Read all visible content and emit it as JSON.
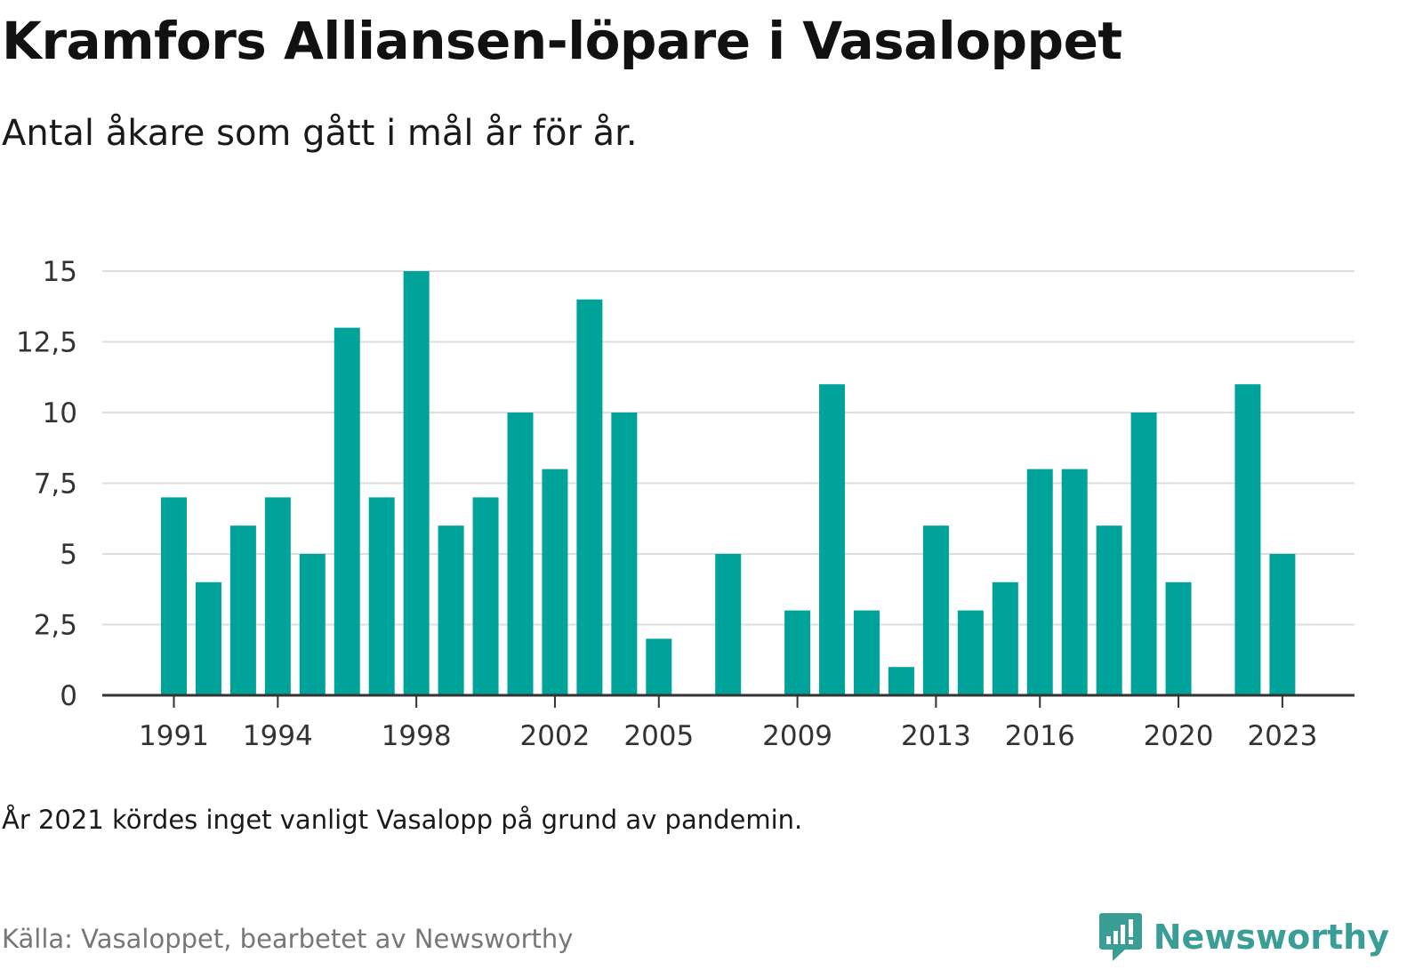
{
  "title": "Kramfors Alliansen-löpare i Vasaloppet",
  "subtitle": "Antal åkare som gått i mål år för år.",
  "note": "År 2021 kördes inget vanligt Vasalopp på grund av pandemin.",
  "source": "Källa: Vasaloppet, bearbetet av Newsworthy",
  "brand": {
    "name": "Newsworthy",
    "color": "#3b9e96",
    "icon": "bar-chart-bubble-icon"
  },
  "colors": {
    "bar": "#00a39a",
    "grid": "#dddddd",
    "axis": "#333333",
    "tick_text": "#333333"
  },
  "chart_data": {
    "type": "bar",
    "categories": [
      1991,
      1992,
      1993,
      1994,
      1995,
      1996,
      1997,
      1998,
      1999,
      2000,
      2001,
      2002,
      2003,
      2004,
      2005,
      2006,
      2007,
      2008,
      2009,
      2010,
      2011,
      2012,
      2013,
      2014,
      2015,
      2016,
      2017,
      2018,
      2019,
      2020,
      2021,
      2022,
      2023
    ],
    "values": [
      7,
      4,
      6,
      7,
      5,
      13,
      7,
      15,
      6,
      7,
      10,
      8,
      14,
      10,
      2,
      0,
      5,
      0,
      3,
      11,
      3,
      1,
      6,
      3,
      4,
      8,
      8,
      6,
      10,
      4,
      0,
      11,
      5
    ],
    "x_tick_labels": [
      "1991",
      "1994",
      "1998",
      "2002",
      "2005",
      "2009",
      "2013",
      "2016",
      "2020",
      "2023"
    ],
    "y_ticks": [
      0,
      2.5,
      5,
      7.5,
      10,
      12.5,
      15
    ],
    "y_tick_labels": [
      "0",
      "2,5",
      "5",
      "7,5",
      "10",
      "12,5",
      "15"
    ],
    "ylim": [
      0,
      15
    ],
    "grid": true,
    "legend": "none"
  }
}
